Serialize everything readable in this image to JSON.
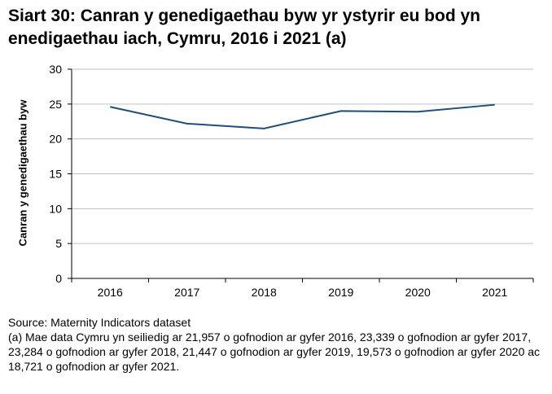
{
  "chart_data": {
    "type": "line",
    "title": "Siart 30: Canran y genedigaethau byw yr ystyrir eu bod yn enedigaethau iach, Cymru, 2016 i 2021 (a)",
    "xlabel": "",
    "ylabel": "Canran y genedigaethau byw",
    "categories": [
      "2016",
      "2017",
      "2018",
      "2019",
      "2020",
      "2021"
    ],
    "values": [
      24.6,
      22.2,
      21.5,
      24.0,
      23.9,
      24.9
    ],
    "ylim": [
      0,
      30
    ],
    "yticks": [
      0,
      5,
      10,
      15,
      20,
      25,
      30
    ],
    "grid": true,
    "legend": "none",
    "line_color": "#1f4e79"
  },
  "notes": {
    "source": "Source: Maternity Indicators dataset",
    "footnote": "(a) Mae data Cymru yn seiliedig ar 21,957 o gofnodion ar gyfer 2016, 23,339 o gofnodion ar gyfer 2017, 23,284 o gofnodion ar gyfer 2018, 21,447 o gofnodion ar gyfer 2019, 19,573 o gofnodion ar gyfer 2020 ac 18,721 o gofnodion ar gyfer 2021."
  }
}
